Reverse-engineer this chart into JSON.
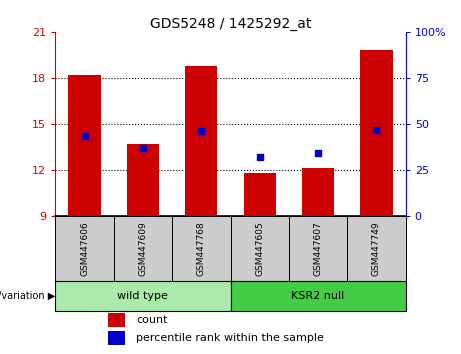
{
  "title": "GDS5248 / 1425292_at",
  "samples": [
    "GSM447606",
    "GSM447609",
    "GSM447768",
    "GSM447605",
    "GSM447607",
    "GSM447749"
  ],
  "bar_values": [
    18.2,
    13.7,
    18.8,
    11.8,
    12.1,
    19.8
  ],
  "percentile_values": [
    14.2,
    13.4,
    14.55,
    12.85,
    13.1,
    14.6
  ],
  "bar_bottom": 9,
  "ylim": [
    9,
    21
  ],
  "yticks": [
    9,
    12,
    15,
    18,
    21
  ],
  "right_ylim": [
    0,
    100
  ],
  "right_yticks": [
    0,
    25,
    50,
    75,
    100
  ],
  "right_yticklabels": [
    "0",
    "25",
    "50",
    "75",
    "100%"
  ],
  "bar_color": "#cc0000",
  "percentile_color": "#0000cc",
  "groups": [
    {
      "label": "wild type",
      "indices": [
        0,
        1,
        2
      ],
      "color": "#aaeaaa"
    },
    {
      "label": "KSR2 null",
      "indices": [
        3,
        4,
        5
      ],
      "color": "#44cc44"
    }
  ],
  "group_label": "genotype/variation",
  "legend_count_label": "count",
  "legend_percentile_label": "percentile rank within the sample",
  "bar_width": 0.55,
  "left_axis_color": "#cc0000",
  "right_axis_color": "#0000cc",
  "grid_yticks": [
    12,
    15,
    18
  ]
}
